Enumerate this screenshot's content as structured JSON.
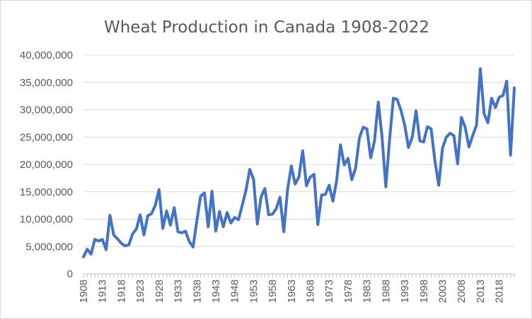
{
  "chart_data": {
    "type": "line",
    "title": "Wheat Production in Canada 1908-2022",
    "xlabel": "",
    "ylabel": "",
    "ylim": [
      0,
      40000000
    ],
    "y_ticks": [
      "0",
      "5,000,000",
      "10,000,000",
      "15,000,000",
      "20,000,000",
      "25,000,000",
      "30,000,000",
      "35,000,000",
      "40,000,000"
    ],
    "x_ticks": [
      "1908",
      "1913",
      "1918",
      "1923",
      "1928",
      "1933",
      "1938",
      "1943",
      "1948",
      "1953",
      "1958",
      "1963",
      "1968",
      "1973",
      "1978",
      "1983",
      "1988",
      "1993",
      "1998",
      "2003",
      "2008",
      "2013",
      "2018"
    ],
    "grid": true,
    "legend": "none",
    "line_color": "#4472c4",
    "x": [
      1908,
      1909,
      1910,
      1911,
      1912,
      1913,
      1914,
      1915,
      1916,
      1917,
      1918,
      1919,
      1920,
      1921,
      1922,
      1923,
      1924,
      1925,
      1926,
      1927,
      1928,
      1929,
      1930,
      1931,
      1932,
      1933,
      1934,
      1935,
      1936,
      1937,
      1938,
      1939,
      1940,
      1941,
      1942,
      1943,
      1944,
      1945,
      1946,
      1947,
      1948,
      1949,
      1950,
      1951,
      1952,
      1953,
      1954,
      1955,
      1956,
      1957,
      1958,
      1959,
      1960,
      1961,
      1962,
      1963,
      1964,
      1965,
      1966,
      1967,
      1968,
      1969,
      1970,
      1971,
      1972,
      1973,
      1974,
      1975,
      1976,
      1977,
      1978,
      1979,
      1980,
      1981,
      1982,
      1983,
      1984,
      1985,
      1986,
      1987,
      1988,
      1989,
      1990,
      1991,
      1992,
      1993,
      1994,
      1995,
      1996,
      1997,
      1998,
      1999,
      2000,
      2001,
      2002,
      2003,
      2004,
      2005,
      2006,
      2007,
      2008,
      2009,
      2010,
      2011,
      2012,
      2013,
      2014,
      2015,
      2016,
      2017,
      2018,
      2019,
      2020,
      2021,
      2022
    ],
    "series": [
      {
        "values": [
          3100000,
          4500000,
          3600000,
          6300000,
          6000000,
          6300000,
          4400000,
          10700000,
          7100000,
          6400000,
          5600000,
          5100000,
          5300000,
          7300000,
          8200000,
          10800000,
          7100000,
          10600000,
          11000000,
          12500000,
          15400000,
          8300000,
          11500000,
          8900000,
          12100000,
          7700000,
          7500000,
          7800000,
          5900000,
          4900000,
          9700000,
          14200000,
          14800000,
          8600000,
          15100000,
          7800000,
          11400000,
          8600000,
          11200000,
          9300000,
          10300000,
          9900000,
          12500000,
          15300000,
          19100000,
          17300000,
          9100000,
          14100000,
          15600000,
          10800000,
          10900000,
          11900000,
          14000000,
          7700000,
          15400000,
          19700000,
          16400000,
          17700000,
          22500000,
          16100000,
          17700000,
          18200000,
          9000000,
          14400000,
          14500000,
          16200000,
          13300000,
          17100000,
          23600000,
          19900000,
          21100000,
          17200000,
          19300000,
          24800000,
          26800000,
          26500000,
          21200000,
          24300000,
          31400000,
          25000000,
          15900000,
          24600000,
          32100000,
          31900000,
          29900000,
          27200000,
          23100000,
          25000000,
          29800000,
          24300000,
          24100000,
          26900000,
          26500000,
          20600000,
          16200000,
          23000000,
          25000000,
          25700000,
          25300000,
          20100000,
          28600000,
          26800000,
          23200000,
          25300000,
          27200000,
          37500000,
          29300000,
          27600000,
          32100000,
          30400000,
          32300000,
          32600000,
          35200000,
          21700000,
          34000000
        ]
      }
    ]
  }
}
